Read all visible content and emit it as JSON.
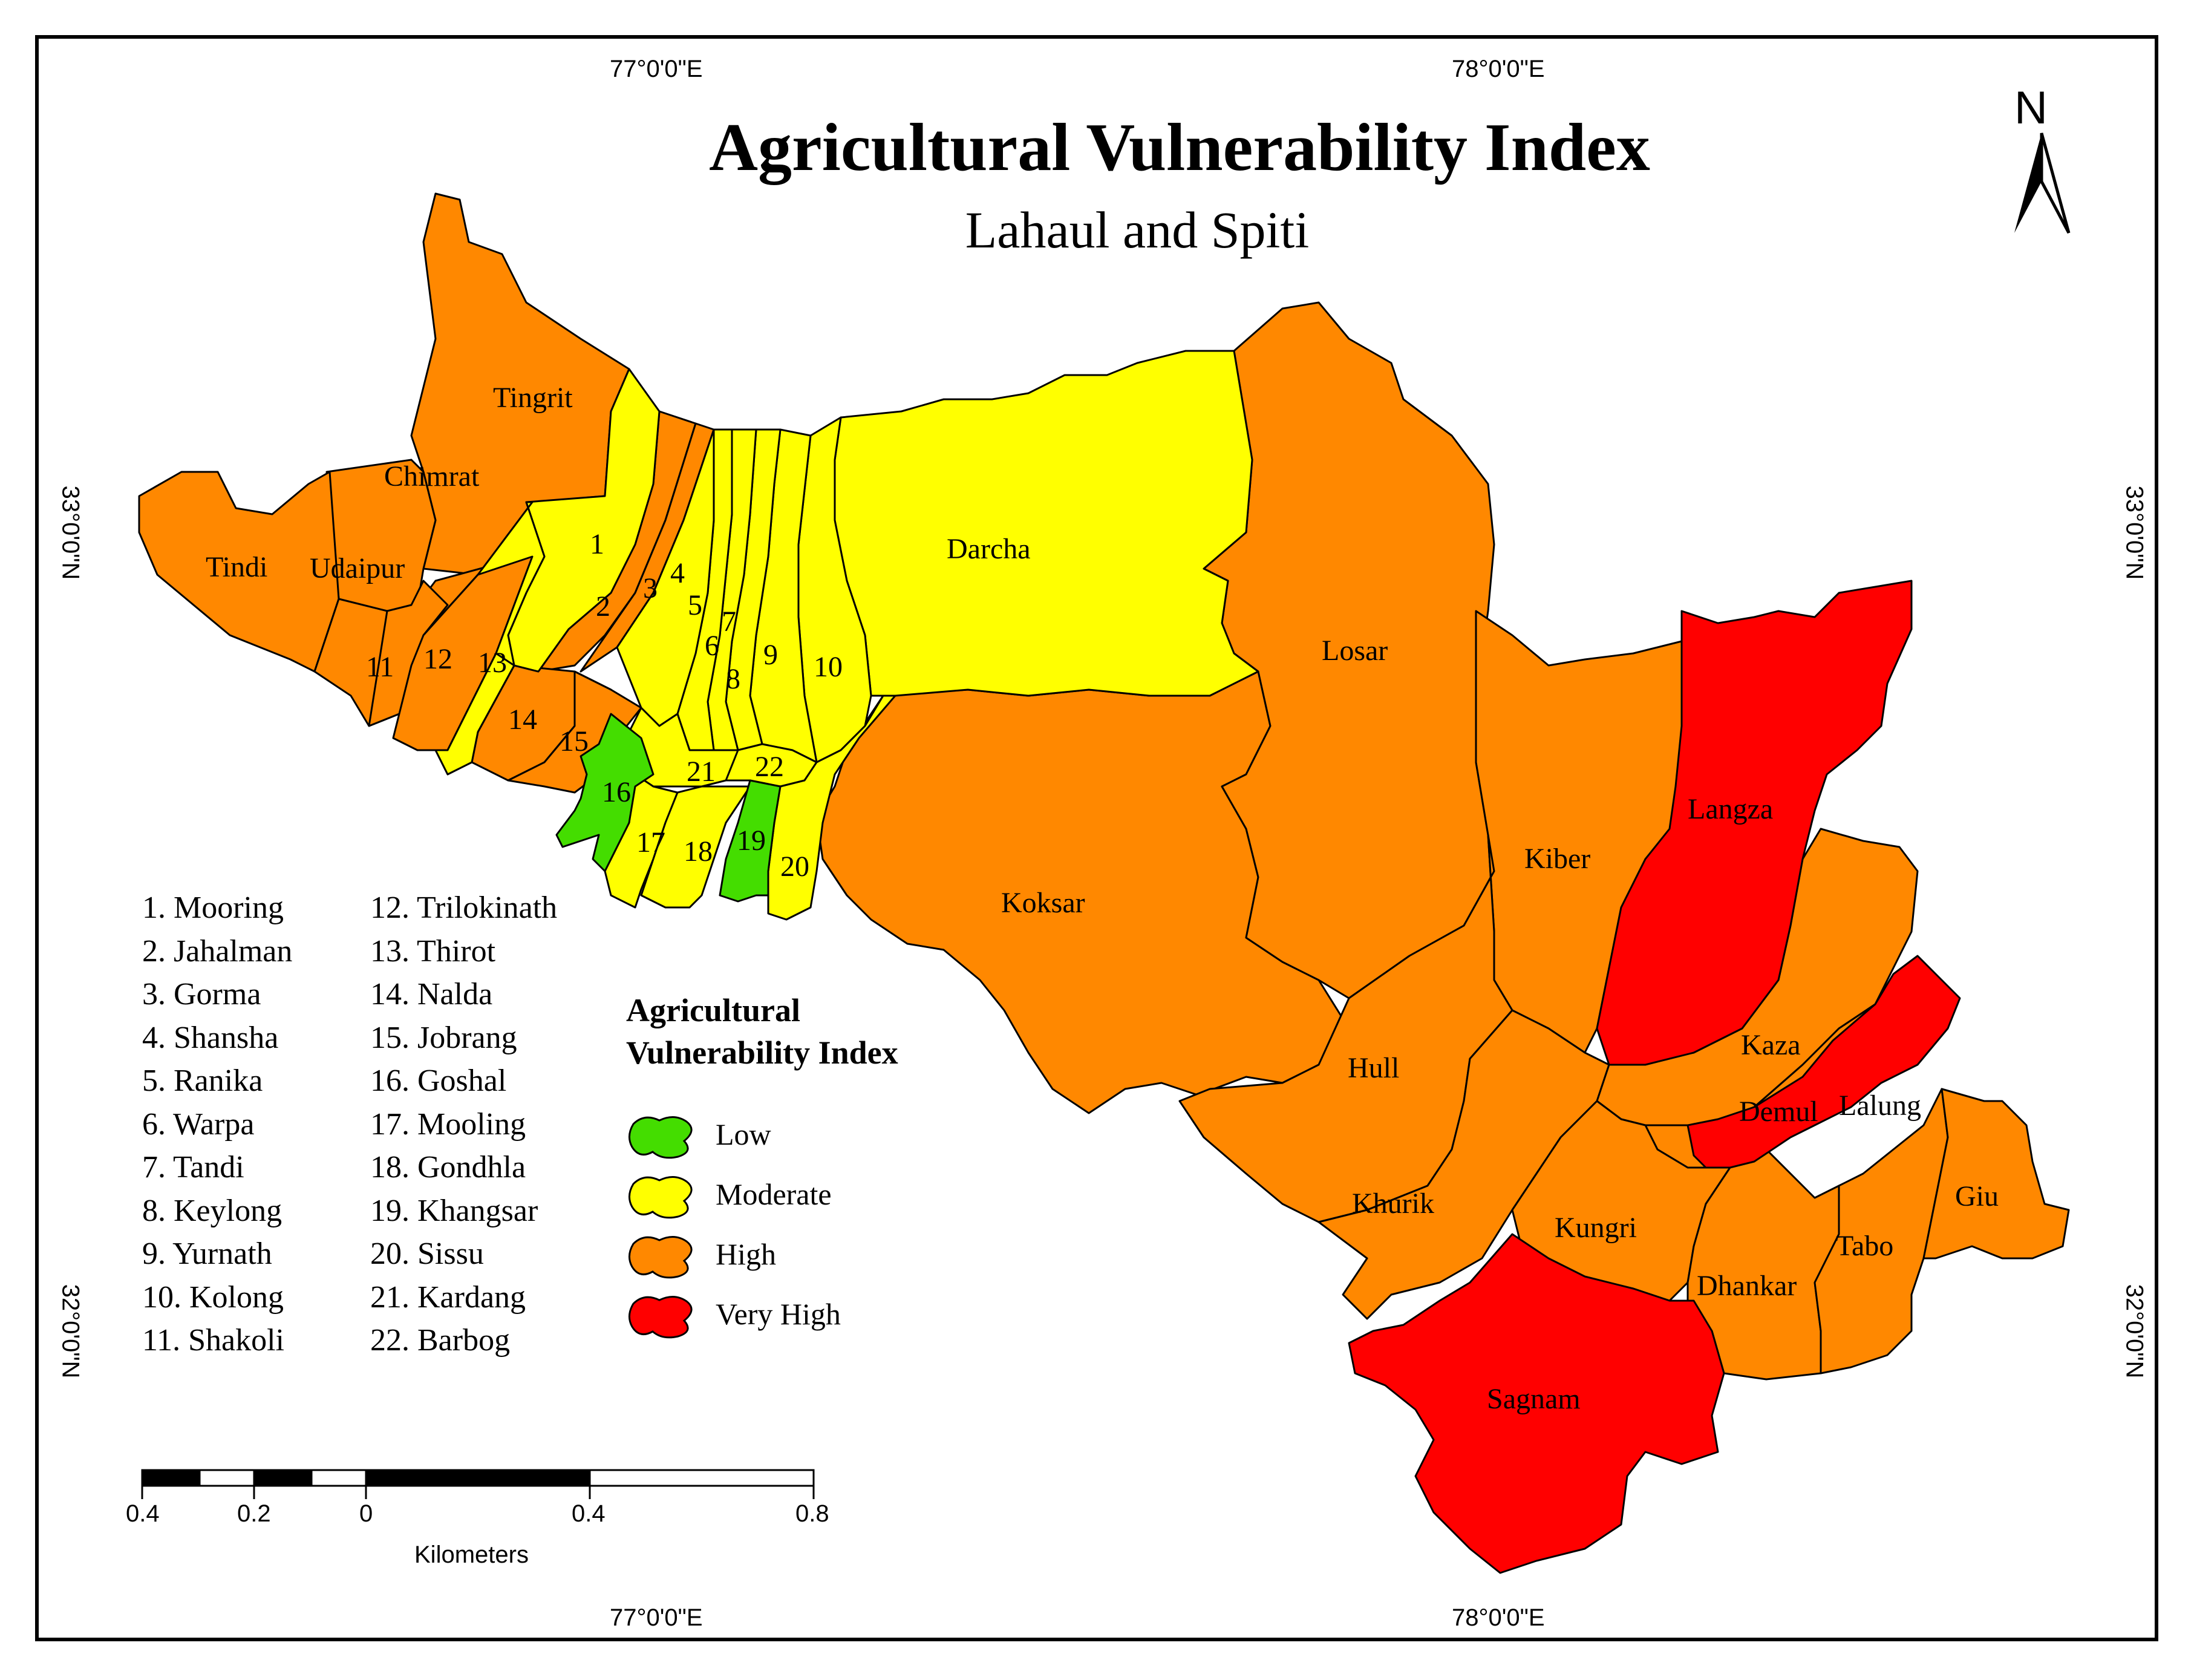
{
  "title": "Agricultural Vulnerability Index",
  "subtitle": "Lahaul and Spiti",
  "coords": {
    "top_left": "77°0'0\"E",
    "top_right": "78°0'0\"E",
    "bottom_left": "77°0'0\"E",
    "bottom_right": "78°0'0\"E",
    "left_upper": "33°0'0\"N",
    "left_lower": "32°0'0\"N",
    "right_upper": "33°0'0\"N",
    "right_lower": "32°0'0\"N"
  },
  "north_arrow": {
    "label": "N",
    "icon": "north-arrow-icon"
  },
  "legend": {
    "title_line1": "Agricultural",
    "title_line2": "Vulnerability Index",
    "items": [
      {
        "label": "Low",
        "color": "#44dd00"
      },
      {
        "label": "Moderate",
        "color": "#ffff00"
      },
      {
        "label": "High",
        "color": "#ff8800"
      },
      {
        "label": "Very High",
        "color": "#ff0000"
      }
    ]
  },
  "key_list_left": [
    "1. Mooring",
    "2. Jahalman",
    "3. Gorma",
    "4. Shansha",
    "5. Ranika",
    "6. Warpa",
    "7. Tandi",
    "8. Keylong",
    "9. Yurnath",
    "10. Kolong",
    "11. Shakoli"
  ],
  "key_list_right": [
    "12. Trilokinath",
    "13. Thirot",
    "14. Nalda",
    "15. Jobrang",
    "16. Goshal",
    "17. Mooling",
    "18. Gondhla",
    "19. Khangsar",
    "20. Sissu",
    "21. Kardang",
    "22. Barbog"
  ],
  "region_labels": {
    "tingrit": "Tingrit",
    "chimrat": "Chimrat",
    "tindi": "Tindi",
    "udaipur": "Udaipur",
    "darcha": "Darcha",
    "losar": "Losar",
    "koksar": "Koksar",
    "kiber": "Kiber",
    "langza": "Langza",
    "kaza": "Kaza",
    "demul": "Demul",
    "lalung": "Lalung",
    "hull": "Hull",
    "khurik": "Khurik",
    "kungri": "Kungri",
    "giu": "Giu",
    "tabo": "Tabo",
    "dhankar": "Dhankar",
    "sagnam": "Sagnam",
    "n1": "1",
    "n2": "2",
    "n3": "3",
    "n4": "4",
    "n5": "5",
    "n6": "6",
    "n7": "7",
    "n8": "8",
    "n9": "9",
    "n10": "10",
    "n11": "11",
    "n12": "12",
    "n13": "13",
    "n14": "14",
    "n15": "15",
    "n16": "16",
    "n17": "17",
    "n18": "18",
    "n19": "19",
    "n20": "20",
    "n21": "21",
    "n22": "22"
  },
  "scale_bar": {
    "ticks": [
      "0.4",
      "0.2",
      "0",
      "0.4",
      "0.8"
    ],
    "unit": "Kilometers"
  }
}
